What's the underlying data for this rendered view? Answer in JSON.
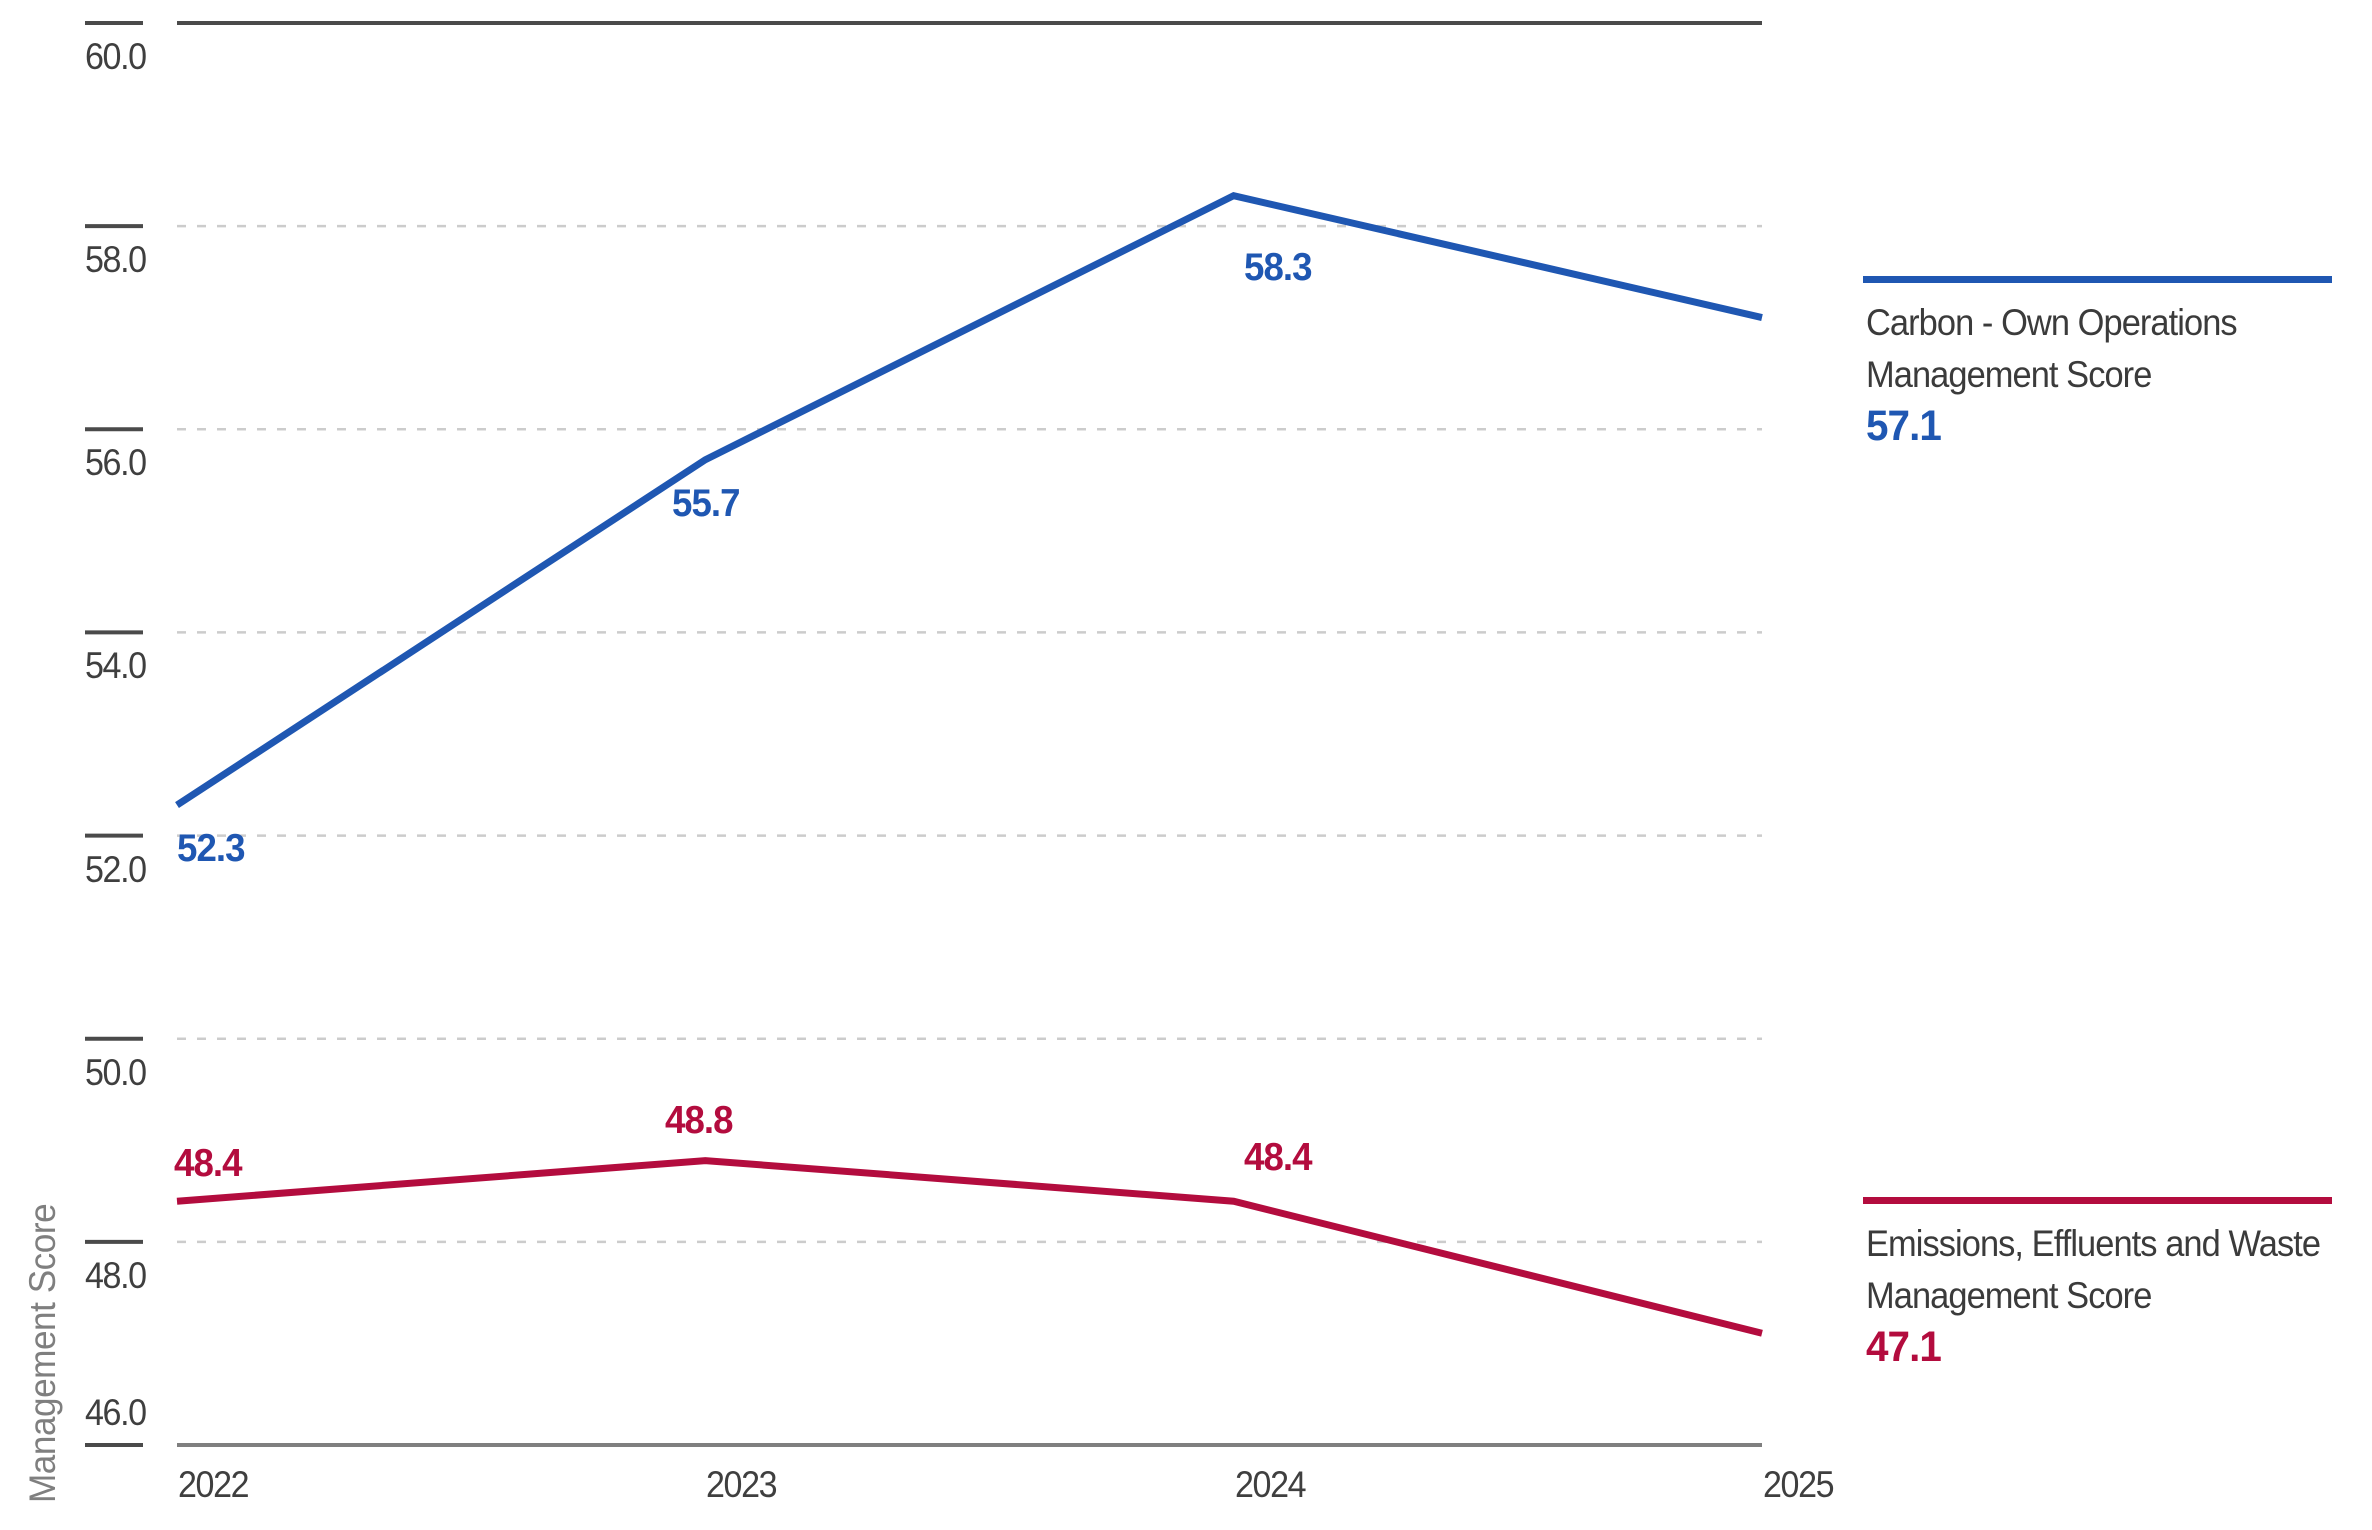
{
  "chart_data": {
    "type": "line",
    "x": [
      "2022",
      "2023",
      "2024",
      "2025"
    ],
    "series": [
      {
        "name": "Carbon - Own Operations Management Score",
        "values": [
          52.3,
          55.7,
          58.3,
          57.1
        ],
        "color": "#1f57b2",
        "point_labels": [
          "52.3",
          "55.7",
          "58.3"
        ]
      },
      {
        "name": "Emissions, Effluents and Waste Management Score",
        "values": [
          48.4,
          48.8,
          48.4,
          47.1
        ],
        "color": "#b30c3e",
        "point_labels": [
          "48.4",
          "48.8",
          "48.4"
        ]
      }
    ],
    "title": "",
    "xlabel": "",
    "ylabel": "Management Score",
    "ylim": [
      46.0,
      60.0
    ],
    "ytick_step": 2,
    "ytick_labels": [
      "60.0",
      "58.0",
      "56.0",
      "54.0",
      "52.0",
      "50.0",
      "48.0",
      "46.0"
    ],
    "grid": "horizontal-dashed",
    "legend_position": "right"
  },
  "legend": [
    {
      "name_line1": "Carbon - Own Operations",
      "name_line2": "Management Score",
      "value": "57.1",
      "color": "#1f57b2"
    },
    {
      "name_line1": "Emissions, Effluents and Waste",
      "name_line2": "Management Score",
      "value": "47.1",
      "color": "#b30c3e"
    }
  ],
  "colors": {
    "series_blue": "#1f57b2",
    "series_red": "#b30c3e",
    "grid_dashed": "#cccccc",
    "axis_top": "#4a4a4a",
    "axis_bottom": "#7f7f7f",
    "tick_mark": "#4a4a4a",
    "tick_text": "#3f3f3f",
    "axis_title_text": "#7f7f7f",
    "legend_text": "#3b3b3b"
  }
}
